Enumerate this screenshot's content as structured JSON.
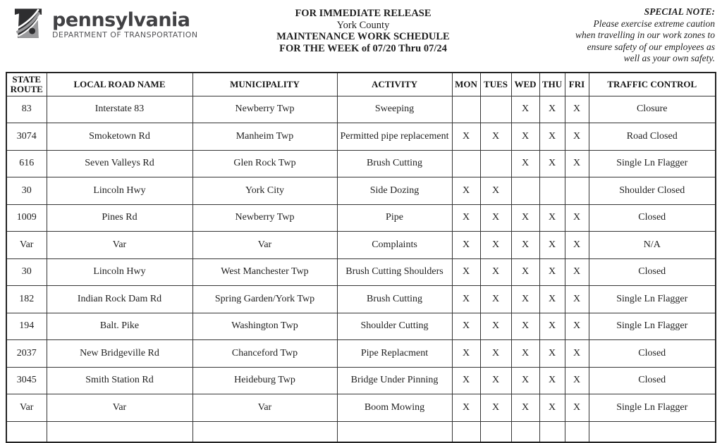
{
  "header": {
    "logo": {
      "icon": "penndot-keystone-icon",
      "brand": "pennsylvania",
      "sub": "DEPARTMENT OF TRANSPORTATION"
    },
    "release": {
      "lines": [
        "FOR IMMEDIATE RELEASE",
        "York County",
        "MAINTENANCE WORK SCHEDULE",
        "FOR THE WEEK of 07/20 Thru 07/24"
      ]
    },
    "special_note": {
      "title": "SPECIAL NOTE:",
      "lines": [
        "Please exercise extreme caution",
        "when travelling in our work zones to",
        "ensure safety of our employees as",
        "well as your own safety."
      ]
    }
  },
  "table": {
    "columns": [
      "STATE ROUTE",
      "LOCAL ROAD NAME",
      "MUNICIPALITY",
      "ACTIVITY",
      "MON",
      "TUES",
      "WED",
      "THU",
      "FRI",
      "TRAFFIC CONTROL"
    ],
    "rows": [
      [
        "83",
        "Interstate 83",
        "Newberry Twp",
        "Sweeping",
        "",
        "",
        "X",
        "X",
        "X",
        "Closure"
      ],
      [
        "3074",
        "Smoketown Rd",
        "Manheim Twp",
        "Permitted pipe replacement",
        "X",
        "X",
        "X",
        "X",
        "X",
        "Road Closed"
      ],
      [
        "616",
        "Seven Valleys Rd",
        "Glen Rock Twp",
        "Brush Cutting",
        "",
        "",
        "X",
        "X",
        "X",
        "Single Ln Flagger"
      ],
      [
        "30",
        "Lincoln Hwy",
        "York City",
        "Side Dozing",
        "X",
        "X",
        "",
        "",
        "",
        "Shoulder Closed"
      ],
      [
        "1009",
        "Pines Rd",
        "Newberry Twp",
        "Pipe",
        "X",
        "X",
        "X",
        "X",
        "X",
        "Closed"
      ],
      [
        "Var",
        "Var",
        "Var",
        "Complaints",
        "X",
        "X",
        "X",
        "X",
        "X",
        "N/A"
      ],
      [
        "30",
        "Lincoln Hwy",
        "West Manchester Twp",
        "Brush Cutting Shoulders",
        "X",
        "X",
        "X",
        "X",
        "X",
        "Closed"
      ],
      [
        "182",
        "Indian Rock Dam Rd",
        "Spring Garden/York Twp",
        "Brush Cutting",
        "X",
        "X",
        "X",
        "X",
        "X",
        "Single Ln Flagger"
      ],
      [
        "194",
        "Balt. Pike",
        "Washington Twp",
        "Shoulder Cutting",
        "X",
        "X",
        "X",
        "X",
        "X",
        "Single Ln Flagger"
      ],
      [
        "2037",
        "New Bridgeville Rd",
        "Chanceford Twp",
        "Pipe Replacment",
        "X",
        "X",
        "X",
        "X",
        "X",
        "Closed"
      ],
      [
        "3045",
        "Smith Station Rd",
        "Heideburg Twp",
        "Bridge Under Pinning",
        "X",
        "X",
        "X",
        "X",
        "X",
        "Closed"
      ],
      [
        "Var",
        "Var",
        "Var",
        "Boom Mowing",
        "X",
        "X",
        "X",
        "X",
        "X",
        "Single Ln Flagger"
      ]
    ]
  },
  "colors": {
    "text": "#1f1f1f",
    "table_border": "#353535",
    "logo_dark": "#2e2e30",
    "logo_gray": "#9a9a9c"
  }
}
